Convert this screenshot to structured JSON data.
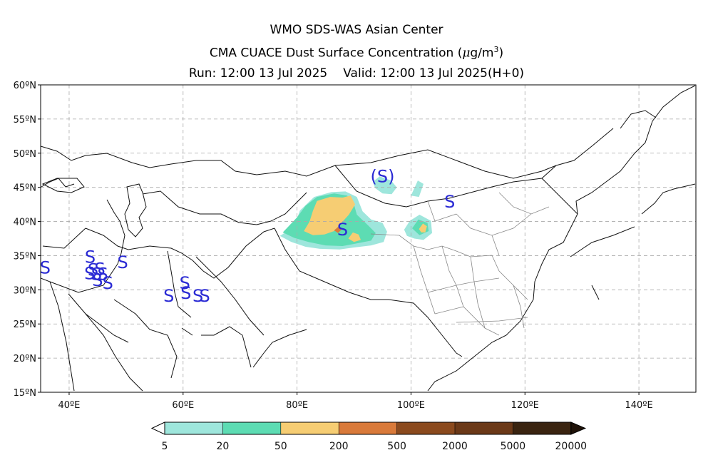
{
  "title": {
    "line1": "WMO SDS-WAS Asian Center",
    "line2_text": "CMA CUACE Dust Surface Concentration",
    "line2_unit_mu": "μ",
    "line2_unit_rest": "g/m",
    "line2_unit_exp": "3",
    "run": "Run: 12:00 13 Jul 2025",
    "valid": "Valid: 12:00 13 Jul 2025(H+0)"
  },
  "map": {
    "lon_range": [
      35,
      150
    ],
    "lat_range": [
      15,
      60
    ],
    "grid": true,
    "lat_ticks": [
      {
        "v": 60,
        "label": "60ºN"
      },
      {
        "v": 55,
        "label": "55ºN"
      },
      {
        "v": 50,
        "label": "50ºN"
      },
      {
        "v": 45,
        "label": "45ºN"
      },
      {
        "v": 40,
        "label": "40ºN"
      },
      {
        "v": 35,
        "label": "35ºN"
      },
      {
        "v": 30,
        "label": "30ºN"
      },
      {
        "v": 25,
        "label": "25ºN"
      },
      {
        "v": 20,
        "label": "20ºN"
      },
      {
        "v": 15,
        "label": "15ºN"
      }
    ],
    "lon_ticks": [
      {
        "v": 40,
        "label": "40ºE"
      },
      {
        "v": 60,
        "label": "60ºE"
      },
      {
        "v": 80,
        "label": "80ºE"
      },
      {
        "v": 100,
        "label": "100ºE"
      },
      {
        "v": 120,
        "label": "120ºE"
      },
      {
        "v": 140,
        "label": "140ºE"
      }
    ],
    "dust_areas": [
      {
        "level": "5-20",
        "color": "#9ee6dc",
        "points": [
          [
            77.0,
            37.9
          ],
          [
            79.5,
            39.2
          ],
          [
            80.5,
            41.6
          ],
          [
            83.0,
            43.6
          ],
          [
            86.0,
            44.3
          ],
          [
            88.5,
            44.4
          ],
          [
            90.5,
            43.6
          ],
          [
            91.5,
            41.5
          ],
          [
            93.0,
            40.3
          ],
          [
            95.0,
            39.8
          ],
          [
            95.8,
            38.5
          ],
          [
            95.2,
            37.0
          ],
          [
            93.0,
            36.5
          ],
          [
            90.0,
            36.2
          ],
          [
            87.5,
            35.9
          ],
          [
            84.0,
            36.0
          ],
          [
            81.5,
            36.3
          ],
          [
            79.0,
            37.0
          ]
        ]
      },
      {
        "level": "5-20",
        "color": "#9ee6dc",
        "points": [
          [
            93.3,
            45.8
          ],
          [
            94.5,
            46.6
          ],
          [
            96.5,
            46.0
          ],
          [
            97.5,
            45.0
          ],
          [
            96.6,
            44.0
          ],
          [
            95.0,
            44.1
          ],
          [
            93.7,
            44.9
          ]
        ]
      },
      {
        "level": "5-20",
        "color": "#9ee6dc",
        "points": [
          [
            100.0,
            43.8
          ],
          [
            101.2,
            46.0
          ],
          [
            102.2,
            45.5
          ],
          [
            101.4,
            43.6
          ]
        ]
      },
      {
        "level": "5-20",
        "color": "#9ee6dc",
        "points": [
          [
            98.8,
            38.8
          ],
          [
            99.8,
            40.1
          ],
          [
            101.5,
            41.0
          ],
          [
            103.5,
            40.1
          ],
          [
            103.7,
            38.3
          ],
          [
            102.2,
            37.3
          ],
          [
            100.6,
            37.5
          ],
          [
            99.3,
            37.9
          ]
        ]
      },
      {
        "level": "20-50",
        "color": "#5ddcb3",
        "points": [
          [
            77.5,
            38.4
          ],
          [
            80.0,
            40.6
          ],
          [
            81.5,
            42.3
          ],
          [
            83.5,
            43.6
          ],
          [
            86.5,
            44.1
          ],
          [
            88.8,
            43.8
          ],
          [
            90.0,
            42.5
          ],
          [
            90.5,
            41.0
          ],
          [
            92.5,
            39.4
          ],
          [
            93.8,
            38.3
          ],
          [
            93.0,
            37.2
          ],
          [
            90.5,
            36.8
          ],
          [
            88.0,
            36.4
          ],
          [
            85.0,
            36.5
          ],
          [
            82.0,
            37.0
          ],
          [
            79.5,
            37.6
          ]
        ]
      },
      {
        "level": "20-50",
        "color": "#5ddcb3",
        "points": [
          [
            100.2,
            39.0
          ],
          [
            101.3,
            40.3
          ],
          [
            102.9,
            39.8
          ],
          [
            103.1,
            38.6
          ],
          [
            101.5,
            38.0
          ]
        ]
      },
      {
        "level": "50-200",
        "color": "#f6cd73",
        "points": [
          [
            81.2,
            38.6
          ],
          [
            82.2,
            40.0
          ],
          [
            82.8,
            41.6
          ],
          [
            83.5,
            43.0
          ],
          [
            85.8,
            43.6
          ],
          [
            88.0,
            43.5
          ],
          [
            89.4,
            43.8
          ],
          [
            90.2,
            42.5
          ],
          [
            89.1,
            41.0
          ],
          [
            87.8,
            39.8
          ],
          [
            86.5,
            38.6
          ],
          [
            84.8,
            38.1
          ],
          [
            82.8,
            38.0
          ]
        ]
      },
      {
        "level": "50-200",
        "color": "#f6cd73",
        "points": [
          [
            89.0,
            37.5
          ],
          [
            89.8,
            38.4
          ],
          [
            90.8,
            38.1
          ],
          [
            91.2,
            37.3
          ],
          [
            90.0,
            37.0
          ]
        ]
      },
      {
        "level": "50-200",
        "color": "#f6cd73",
        "points": [
          [
            101.4,
            38.9
          ],
          [
            102.1,
            39.7
          ],
          [
            102.8,
            39.3
          ],
          [
            102.5,
            38.4
          ],
          [
            101.8,
            38.4
          ]
        ]
      },
      {
        "level": "200-500",
        "color": "#d97a3a",
        "points": [
          [
            86.5,
            38.7
          ],
          [
            87.2,
            39.2
          ],
          [
            87.8,
            38.8
          ],
          [
            87.2,
            38.3
          ]
        ]
      }
    ],
    "s_markers": [
      {
        "lon": 35.8,
        "lat": 33.2,
        "text": "S"
      },
      {
        "lon": 43.7,
        "lat": 34.8,
        "text": "S"
      },
      {
        "lon": 43.6,
        "lat": 32.4,
        "text": "S"
      },
      {
        "lon": 44.2,
        "lat": 32.9,
        "text": "S"
      },
      {
        "lon": 44.8,
        "lat": 32.3,
        "text": "S"
      },
      {
        "lon": 45.4,
        "lat": 33.0,
        "text": "S"
      },
      {
        "lon": 45.9,
        "lat": 32.3,
        "text": "S"
      },
      {
        "lon": 45.0,
        "lat": 31.4,
        "text": "S"
      },
      {
        "lon": 46.8,
        "lat": 31.0,
        "text": "S"
      },
      {
        "lon": 49.4,
        "lat": 34.0,
        "text": "S"
      },
      {
        "lon": 57.5,
        "lat": 29.1,
        "text": "S"
      },
      {
        "lon": 60.3,
        "lat": 31.0,
        "text": "S"
      },
      {
        "lon": 60.5,
        "lat": 29.5,
        "text": "S"
      },
      {
        "lon": 62.6,
        "lat": 29.1,
        "text": "S"
      },
      {
        "lon": 63.8,
        "lat": 29.1,
        "text": "S"
      },
      {
        "lon": 88.0,
        "lat": 38.8,
        "text": "S"
      },
      {
        "lon": 95.0,
        "lat": 46.6,
        "text": "(S)"
      },
      {
        "lon": 106.8,
        "lat": 42.9,
        "text": "S"
      }
    ]
  },
  "colorbar": {
    "colors": [
      "#9ee6dc",
      "#5ddcb3",
      "#f6cd73",
      "#d97a3a",
      "#8b4a1e",
      "#6b3918",
      "#3a2410"
    ],
    "over_color": "#1f1208",
    "labels": [
      "5",
      "20",
      "50",
      "200",
      "500",
      "2000",
      "5000",
      "20000"
    ]
  }
}
